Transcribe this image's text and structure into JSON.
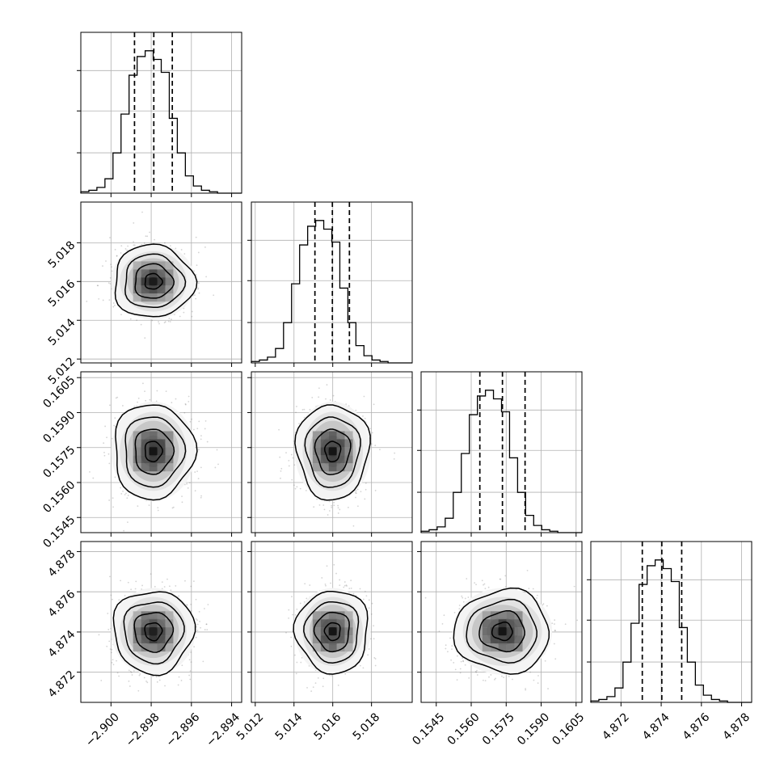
{
  "chart_data": {
    "type": "corner",
    "grid": true,
    "parameters": [
      {
        "ticks": [
          "−2.900",
          "−2.898",
          "−2.896",
          "−2.894"
        ],
        "tick_values": [
          -2.9,
          -2.898,
          -2.896,
          -2.894
        ],
        "range": [
          -2.9015,
          -2.8935
        ],
        "quantiles": [
          -2.89883,
          -2.89787,
          -2.89695
        ],
        "histogram": {
          "bins": 20,
          "counts": [
            1,
            2,
            4,
            10,
            28,
            55,
            82,
            95,
            99,
            93,
            84,
            52,
            28,
            12,
            5,
            2,
            1,
            0,
            0,
            0
          ]
        }
      },
      {
        "ticks": [
          "5.012",
          "5.014",
          "5.016",
          "5.018"
        ],
        "tick_values": [
          5.012,
          5.014,
          5.016,
          5.018
        ],
        "range": [
          5.0118,
          5.0201
        ],
        "quantiles": [
          5.01508,
          5.01598,
          5.01686
        ],
        "histogram": {
          "bins": 20,
          "counts": [
            1,
            2,
            4,
            10,
            28,
            55,
            82,
            95,
            99,
            93,
            84,
            52,
            28,
            12,
            5,
            2,
            1,
            0,
            0,
            0
          ]
        }
      },
      {
        "ticks": [
          "0.1545",
          "0.1560",
          "0.1575",
          "0.1590",
          "0.1605"
        ],
        "tick_values": [
          0.1545,
          0.156,
          0.1575,
          0.159,
          0.1605
        ],
        "range": [
          0.15385,
          0.16075
        ],
        "quantiles": [
          0.15637,
          0.15734,
          0.15831
        ],
        "histogram": {
          "bins": 20,
          "counts": [
            1,
            2,
            4,
            10,
            28,
            55,
            82,
            95,
            99,
            93,
            84,
            52,
            28,
            12,
            5,
            2,
            1,
            0,
            0,
            0
          ]
        }
      },
      {
        "ticks": [
          "4.872",
          "4.874",
          "4.876",
          "4.878"
        ],
        "tick_values": [
          4.872,
          4.874,
          4.876,
          4.878
        ],
        "range": [
          4.8705,
          4.8785
        ],
        "quantiles": [
          4.87306,
          4.87403,
          4.87502
        ],
        "histogram": {
          "bins": 20,
          "counts": [
            1,
            2,
            4,
            10,
            28,
            55,
            82,
            95,
            99,
            93,
            84,
            52,
            28,
            12,
            5,
            2,
            1,
            0,
            0,
            0
          ]
        }
      }
    ],
    "means": [
      -2.8979,
      5.016,
      0.15734,
      4.87403
    ],
    "sigmas": [
      0.00095,
      0.00089,
      0.00097,
      0.00098
    ],
    "colors": {
      "background": "#ffffff",
      "axes": "#000000",
      "grid": "#b0b0b0",
      "points": "#666666",
      "histogram": "#000000"
    }
  }
}
